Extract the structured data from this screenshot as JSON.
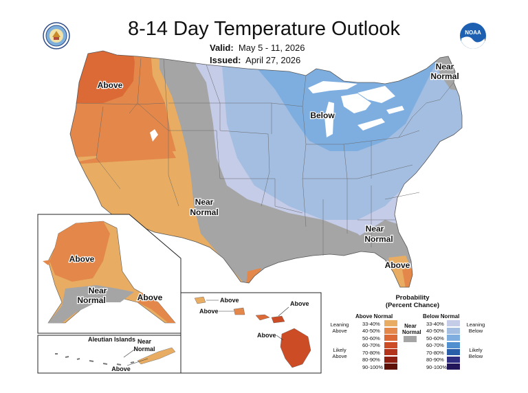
{
  "header": {
    "title": "8-14 Day Temperature Outlook",
    "valid_label": "Valid:",
    "valid_value": "May 5 - 11, 2026",
    "issued_label": "Issued:",
    "issued_value": "April 27, 2026"
  },
  "logos": {
    "left": "seal-icon",
    "right": "noaa-logo",
    "right_text": "NOAA"
  },
  "map_labels": {
    "above_nw": "Above",
    "below_ne": "Below",
    "near_normal_sw": "Near",
    "near_normal_sw2": "Normal",
    "near_normal_maine": "Near",
    "near_normal_maine2": "Normal",
    "near_normal_se": "Near",
    "near_normal_se2": "Normal",
    "above_fl": "Above",
    "alaska_above": "Above",
    "alaska_near": "Near",
    "alaska_near2": "Normal",
    "alaska_above_se": "Above",
    "aleutian_title": "Aleutian Islands",
    "aleutian_near": "Near",
    "aleutian_near2": "Normal",
    "aleutian_above": "Above",
    "hawaii_above1": "Above",
    "hawaii_above2": "Above",
    "hawaii_above3": "Above",
    "hawaii_above4": "Above"
  },
  "legend": {
    "title1": "Probability",
    "title2": "(Percent Chance)",
    "above_head": "Above Normal",
    "near_head": "Near",
    "near_head2": "Normal",
    "below_head": "Below Normal",
    "leaning_above": "Leaning",
    "leaning_above2": "Above",
    "likely_above": "Likely",
    "likely_above2": "Above",
    "leaning_below": "Leaning",
    "leaning_below2": "Below",
    "likely_below": "Likely",
    "likely_below2": "Below",
    "above_bins": [
      {
        "label": "33-40%",
        "color": "#e8ad62"
      },
      {
        "label": "40-50%",
        "color": "#e3884a"
      },
      {
        "label": "50-60%",
        "color": "#db6a36"
      },
      {
        "label": "60-70%",
        "color": "#cc4c26"
      },
      {
        "label": "70-80%",
        "color": "#b3341b"
      },
      {
        "label": "80-90%",
        "color": "#8e1f10"
      },
      {
        "label": "90-100%",
        "color": "#5e1106"
      }
    ],
    "below_bins": [
      {
        "label": "33-40%",
        "color": "#c5cce8"
      },
      {
        "label": "40-50%",
        "color": "#a4bee2"
      },
      {
        "label": "50-60%",
        "color": "#7eaee0"
      },
      {
        "label": "60-70%",
        "color": "#4f8fcf"
      },
      {
        "label": "70-80%",
        "color": "#2a5ea8"
      },
      {
        "label": "80-90%",
        "color": "#2e2d82"
      },
      {
        "label": "90-100%",
        "color": "#23155a"
      }
    ],
    "near_color": "#a5a5a5"
  },
  "colors": {
    "above_40_50": "#e3884a",
    "above_33_40": "#e8ad62",
    "above_50_60": "#db6a36",
    "near": "#a5a5a5",
    "below_33_40": "#c5cce8",
    "below_40_50": "#a4bee2",
    "below_50_60": "#7eaee0"
  }
}
